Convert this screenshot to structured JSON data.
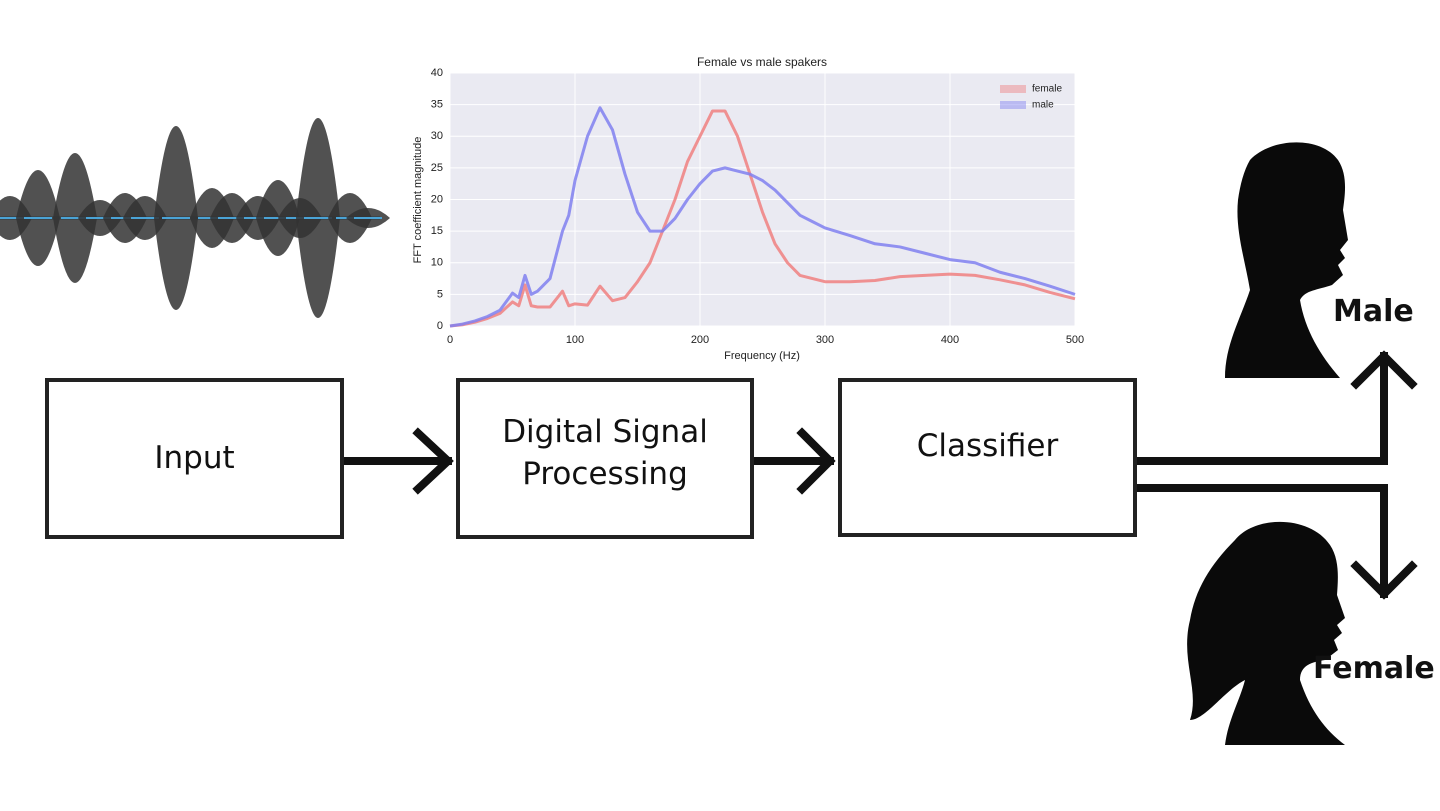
{
  "chart_data": {
    "type": "line",
    "title": "Female vs male spakers",
    "x_label": "Frequency (Hz)",
    "y_label": "FFT coefficient magnitude",
    "x": [
      0,
      10,
      20,
      30,
      40,
      50,
      55,
      60,
      65,
      70,
      80,
      90,
      95,
      100,
      110,
      120,
      130,
      140,
      150,
      160,
      170,
      180,
      190,
      200,
      210,
      220,
      230,
      240,
      250,
      260,
      270,
      280,
      290,
      300,
      320,
      340,
      360,
      380,
      400,
      420,
      440,
      460,
      480,
      500
    ],
    "series": [
      {
        "name": "female",
        "color": "#f08080",
        "values": [
          0,
          0.2,
          0.6,
          1.2,
          2,
          3.8,
          3.2,
          6.5,
          3.2,
          3,
          3,
          5.5,
          3.2,
          3.5,
          3.3,
          6.3,
          4,
          4.5,
          7,
          10,
          15,
          20,
          26,
          30,
          34,
          34,
          30,
          24,
          18,
          13,
          10,
          8,
          7.5,
          7,
          7,
          7.2,
          7.8,
          8,
          8.2,
          8,
          7.3,
          6.5,
          5.3,
          4.3
        ]
      },
      {
        "name": "male",
        "color": "#8080f0",
        "values": [
          0,
          0.3,
          0.8,
          1.5,
          2.5,
          5.2,
          4.5,
          8,
          5,
          5.5,
          7.5,
          15,
          17.5,
          23,
          30,
          34.5,
          31,
          24,
          18,
          15,
          15,
          17,
          20,
          22.5,
          24.5,
          25,
          24.5,
          24,
          23,
          21.5,
          19.5,
          17.5,
          16.5,
          15.5,
          14.3,
          13,
          12.5,
          11.5,
          10.5,
          10,
          8.5,
          7.5,
          6.3,
          5
        ]
      }
    ],
    "xlim": [
      0,
      500
    ],
    "xticks": [
      0,
      100,
      200,
      300,
      400,
      500
    ],
    "ylim": [
      0,
      40
    ],
    "yticks": [
      0,
      5,
      10,
      15,
      20,
      25,
      30,
      35,
      40
    ],
    "grid": true,
    "legend": "upper right"
  },
  "diagram": {
    "nodes": [
      {
        "label": "Input"
      },
      {
        "label": "Digital Signal Processing"
      },
      {
        "label": "Classifier"
      }
    ],
    "outputs": [
      {
        "label": "Male"
      },
      {
        "label": "Female"
      }
    ]
  }
}
